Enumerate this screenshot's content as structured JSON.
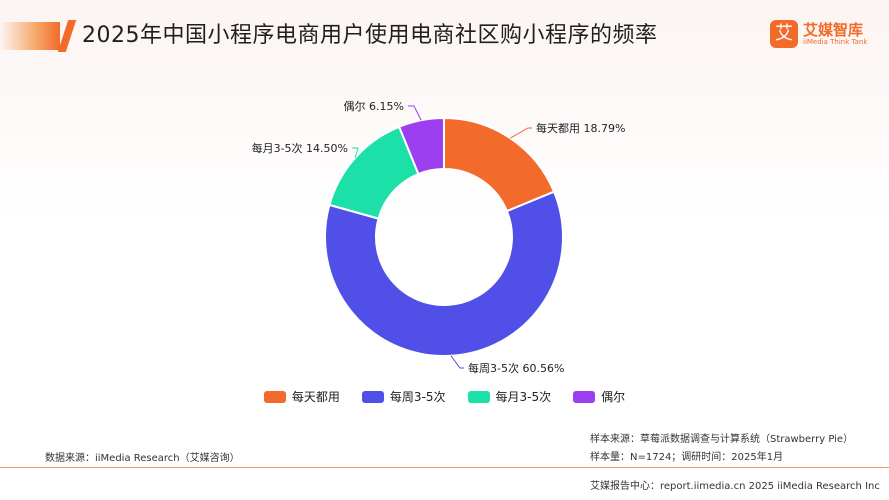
{
  "header": {
    "title": "2025年中国小程序电商用户使用电商社区购小程序的频率"
  },
  "logo": {
    "mark": "艾",
    "name_cn": "艾媒智库",
    "name_en": "iiMedia Think Tank"
  },
  "colors": {
    "accent": "#f26b2b"
  },
  "chart_data": {
    "type": "pie",
    "title": "2025年中国小程序电商用户使用电商社区购小程序的频率",
    "donut": true,
    "legend_position": "bottom",
    "slices": [
      {
        "label": "每天都用",
        "value": 18.79,
        "display": "每天都用 18.79%",
        "color": "#f26b2b"
      },
      {
        "label": "每周3-5次",
        "value": 60.56,
        "display": "每周3-5次 60.56%",
        "color": "#5050e8"
      },
      {
        "label": "每月3-5次",
        "value": 14.5,
        "display": "每月3-5次 14.50%",
        "color": "#1de0a8"
      },
      {
        "label": "偶尔",
        "value": 6.15,
        "display": "偶尔 6.15%",
        "color": "#9b3ff0"
      }
    ]
  },
  "footer": {
    "source": "数据来源：iiMedia Research（艾媒咨询）",
    "sample_source": "样本来源：草莓派数据调查与计算系统（Strawberry Pie）",
    "sample_size": "样本量：N=1724；调研时间：2025年1月",
    "report": "艾媒报告中心：report.iimedia.cn 2025 iiMedia Research Inc"
  }
}
